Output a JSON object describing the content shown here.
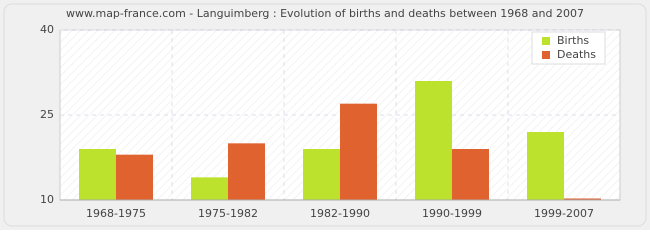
{
  "chart_data": {
    "type": "bar",
    "title": "www.map-france.com - Languimberg : Evolution of births and deaths between 1968 and 2007",
    "categories": [
      "1968-1975",
      "1975-1982",
      "1982-1990",
      "1990-1999",
      "1999-2007"
    ],
    "series": [
      {
        "name": "Births",
        "color": "#bde22d",
        "values": [
          19,
          14,
          19,
          31,
          22
        ]
      },
      {
        "name": "Deaths",
        "color": "#e0622f",
        "values": [
          18,
          20,
          27,
          19,
          10
        ]
      }
    ],
    "ylim": [
      10,
      40
    ],
    "yticks": [
      10,
      25,
      40
    ],
    "grid": true,
    "legend": "top-right"
  }
}
